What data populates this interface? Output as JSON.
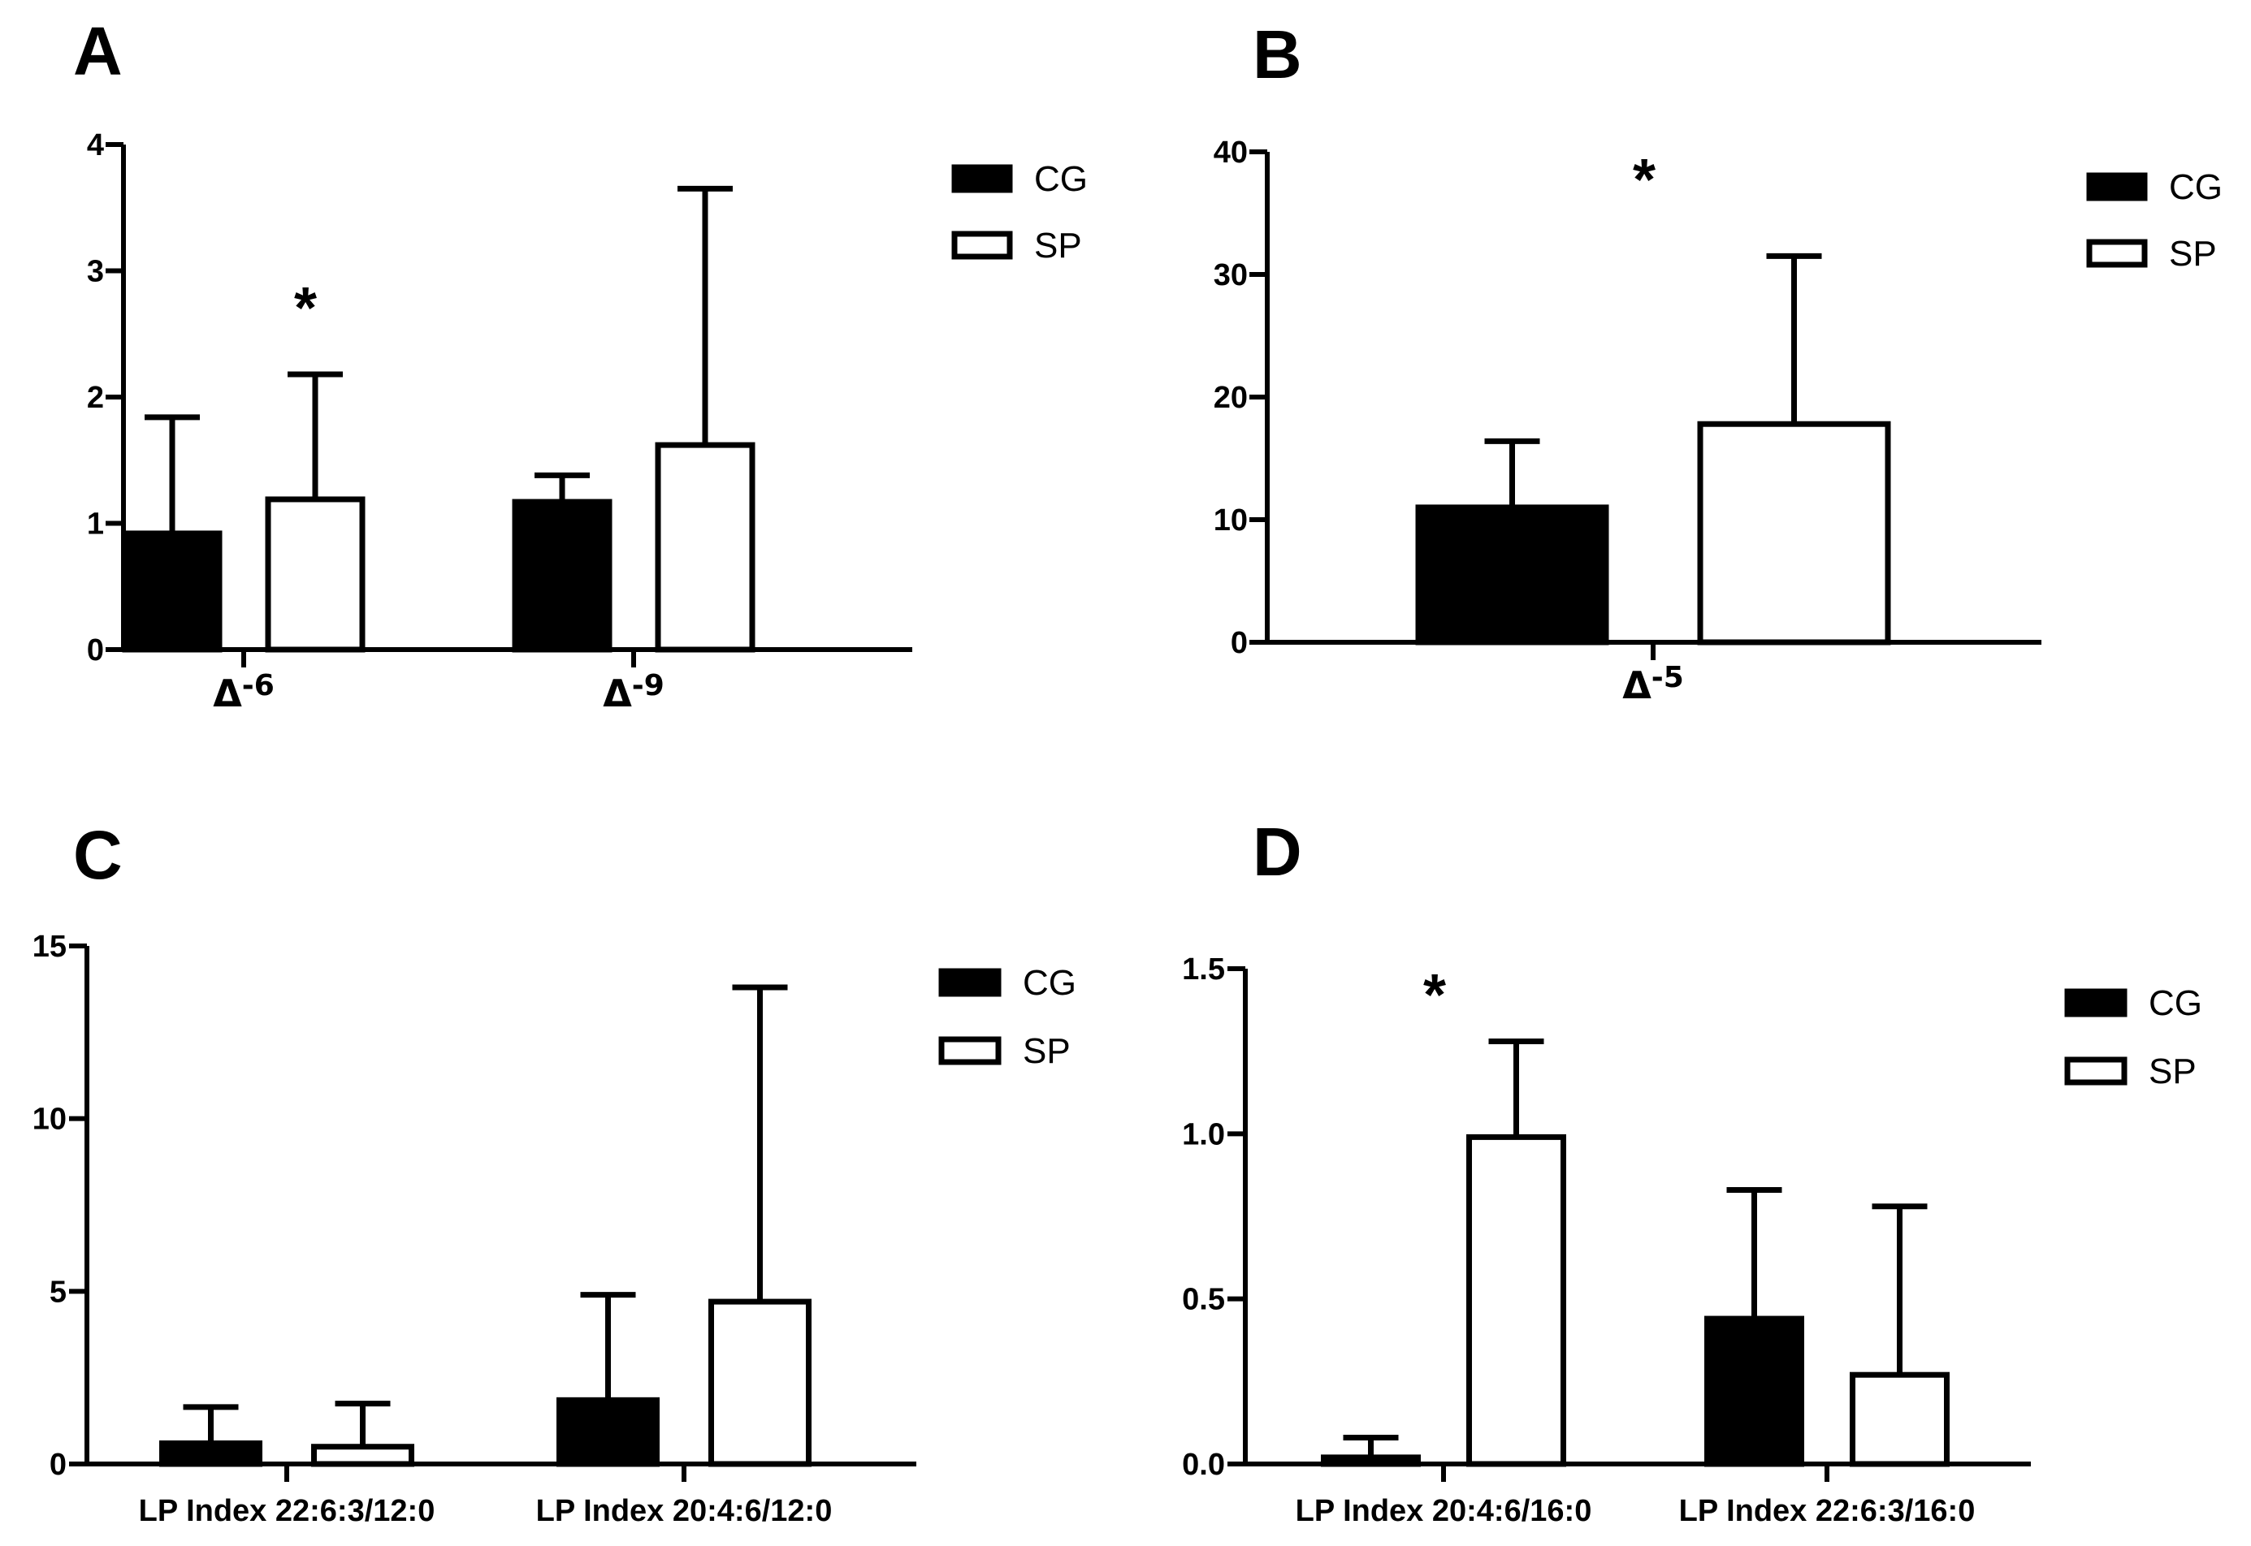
{
  "chart_data": [
    {
      "panel": "A",
      "type": "bar",
      "categories": [
        "Δ-6",
        "Δ-9"
      ],
      "category_parts": [
        [
          "Δ",
          "-6"
        ],
        [
          "Δ",
          "-9"
        ]
      ],
      "series": [
        {
          "name": "CG",
          "fill": "#000000",
          "values": [
            0.92,
            1.17
          ],
          "errors": [
            0.92,
            0.21
          ]
        },
        {
          "name": "SP",
          "fill": "#ffffff",
          "values": [
            1.19,
            1.62
          ],
          "errors": [
            0.99,
            2.03
          ]
        }
      ],
      "ylim": [
        0,
        4
      ],
      "yticks": [
        "0",
        "1",
        "2",
        "3",
        "4"
      ],
      "xlabel": "",
      "ylabel": "",
      "significance": [
        {
          "label": "*",
          "category": 0
        }
      ],
      "legend": "top-right"
    },
    {
      "panel": "B",
      "type": "bar",
      "categories": [
        "Δ-5"
      ],
      "category_parts": [
        [
          "Δ",
          "-5"
        ]
      ],
      "series": [
        {
          "name": "CG",
          "fill": "#000000",
          "values": [
            11.0
          ],
          "errors": [
            5.4
          ]
        },
        {
          "name": "SP",
          "fill": "#ffffff",
          "values": [
            17.8
          ],
          "errors": [
            13.7
          ]
        }
      ],
      "ylim": [
        0,
        40
      ],
      "yticks": [
        "0",
        "10",
        "20",
        "30",
        "40"
      ],
      "xlabel": "",
      "ylabel": "",
      "significance": [
        {
          "label": "*",
          "category": 0
        }
      ],
      "legend": "top-right"
    },
    {
      "panel": "C",
      "type": "bar",
      "categories": [
        "LP Index 22:6:3/12:0",
        "LP Index 20:4:6/12:0"
      ],
      "series": [
        {
          "name": "CG",
          "fill": "#000000",
          "values": [
            0.6,
            1.85
          ],
          "errors": [
            1.05,
            3.05
          ]
        },
        {
          "name": "SP",
          "fill": "#ffffff",
          "values": [
            0.5,
            4.7
          ],
          "errors": [
            1.25,
            9.1
          ]
        }
      ],
      "ylim": [
        0,
        15
      ],
      "yticks": [
        "0",
        "5",
        "10",
        "15"
      ],
      "xlabel": "",
      "ylabel": "",
      "significance": [],
      "legend": "top-right"
    },
    {
      "panel": "D",
      "type": "bar",
      "categories": [
        "LP Index 20:4:6/16:0",
        "LP Index 22:6:3/16:0"
      ],
      "series": [
        {
          "name": "CG",
          "fill": "#000000",
          "values": [
            0.02,
            0.44
          ],
          "errors": [
            0.06,
            0.39
          ]
        },
        {
          "name": "SP",
          "fill": "#ffffff",
          "values": [
            0.99,
            0.27
          ],
          "errors": [
            0.29,
            0.51
          ]
        }
      ],
      "ylim": [
        0,
        1.5
      ],
      "yticks": [
        "0.0",
        "0.5",
        "1.0",
        "1.5"
      ],
      "xlabel": "",
      "ylabel": "",
      "significance": [
        {
          "label": "*",
          "category": 0
        }
      ],
      "legend": "top-right"
    }
  ]
}
